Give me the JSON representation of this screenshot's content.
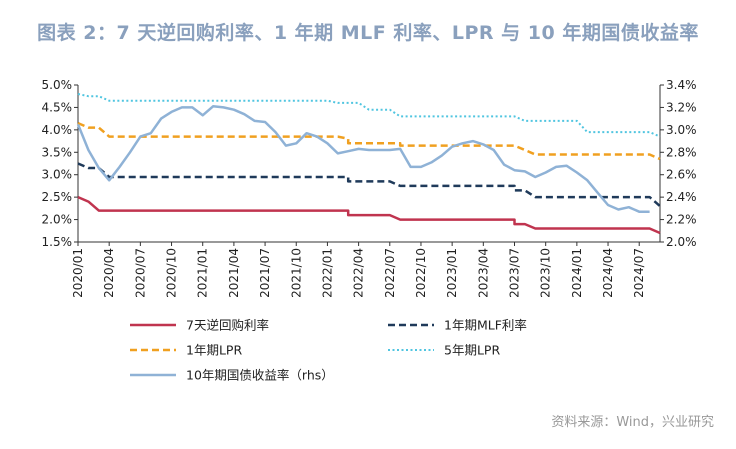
{
  "title": "图表 2：7 天逆回购利率、1 年期 MLF 利率、LPR 与 10 年期国债收益率",
  "source": "资料来源：Wind，兴业研究",
  "chart_data": {
    "type": "line",
    "x_tick_labels": [
      "2020/01",
      "2020/04",
      "2020/07",
      "2020/10",
      "2021/01",
      "2021/04",
      "2021/07",
      "2021/10",
      "2022/01",
      "2022/04",
      "2022/07",
      "2022/10",
      "2023/01",
      "2023/04",
      "2023/07",
      "2023/10",
      "2024/01",
      "2024/04",
      "2024/07"
    ],
    "x_range": [
      0,
      56
    ],
    "y_left": {
      "min": 1.5,
      "max": 5.0,
      "step": 0.5,
      "tick_labels": [
        "1.5%",
        "2.0%",
        "2.5%",
        "3.0%",
        "3.5%",
        "4.0%",
        "4.5%",
        "5.0%"
      ]
    },
    "y_right": {
      "min": 2.0,
      "max": 3.4,
      "step": 0.2,
      "tick_labels": [
        "2.0%",
        "2.2%",
        "2.4%",
        "2.6%",
        "2.8%",
        "3.0%",
        "3.2%",
        "3.4%"
      ]
    },
    "series": [
      {
        "name": "7天逆回购利率",
        "axis": "left",
        "color": "#c0344f",
        "style": "solid",
        "points": [
          [
            0,
            2.5
          ],
          [
            1,
            2.4
          ],
          [
            2,
            2.2
          ],
          [
            26,
            2.2
          ],
          [
            26,
            2.1
          ],
          [
            30,
            2.1
          ],
          [
            31,
            2.0
          ],
          [
            42,
            2.0
          ],
          [
            42,
            1.9
          ],
          [
            43,
            1.9
          ],
          [
            44,
            1.8
          ],
          [
            55,
            1.8
          ],
          [
            56,
            1.7
          ]
        ]
      },
      {
        "name": "1年期MLF利率",
        "axis": "left",
        "color": "#1f3a5a",
        "style": "dashed",
        "points": [
          [
            0,
            3.25
          ],
          [
            1,
            3.15
          ],
          [
            2,
            3.15
          ],
          [
            3,
            2.95
          ],
          [
            26,
            2.95
          ],
          [
            26,
            2.85
          ],
          [
            30,
            2.85
          ],
          [
            31,
            2.75
          ],
          [
            42,
            2.75
          ],
          [
            42,
            2.65
          ],
          [
            43,
            2.65
          ],
          [
            44,
            2.5
          ],
          [
            55,
            2.5
          ],
          [
            56,
            2.3
          ]
        ]
      },
      {
        "name": "1年期LPR",
        "axis": "left",
        "color": "#f0a020",
        "style": "dashed",
        "points": [
          [
            0,
            4.15
          ],
          [
            1,
            4.05
          ],
          [
            2,
            4.05
          ],
          [
            3,
            3.85
          ],
          [
            24,
            3.85
          ],
          [
            24,
            3.85
          ],
          [
            25,
            3.85
          ],
          [
            26,
            3.8
          ],
          [
            26,
            3.7
          ],
          [
            31,
            3.7
          ],
          [
            31,
            3.65
          ],
          [
            42,
            3.65
          ],
          [
            43,
            3.55
          ],
          [
            44,
            3.45
          ],
          [
            55,
            3.45
          ],
          [
            56,
            3.35
          ]
        ]
      },
      {
        "name": "5年期LPR",
        "axis": "left",
        "color": "#50c5e0",
        "style": "dotted",
        "points": [
          [
            0,
            4.8
          ],
          [
            1,
            4.75
          ],
          [
            2,
            4.75
          ],
          [
            3,
            4.65
          ],
          [
            24,
            4.65
          ],
          [
            25,
            4.6
          ],
          [
            27,
            4.6
          ],
          [
            28,
            4.45
          ],
          [
            30,
            4.45
          ],
          [
            31,
            4.3
          ],
          [
            42,
            4.3
          ],
          [
            43,
            4.2
          ],
          [
            48,
            4.2
          ],
          [
            49,
            3.95
          ],
          [
            55,
            3.95
          ],
          [
            56,
            3.85
          ]
        ]
      },
      {
        "name": "10年期国债收益率（rhs）",
        "axis": "right",
        "color": "#8fb2d6",
        "style": "solid",
        "points": [
          [
            0,
            3.05
          ],
          [
            1,
            2.82
          ],
          [
            2,
            2.66
          ],
          [
            3,
            2.55
          ],
          [
            4,
            2.67
          ],
          [
            5,
            2.8
          ],
          [
            6,
            2.94
          ],
          [
            7,
            2.97
          ],
          [
            8,
            3.1
          ],
          [
            9,
            3.16
          ],
          [
            10,
            3.2
          ],
          [
            11,
            3.2
          ],
          [
            12,
            3.13
          ],
          [
            13,
            3.21
          ],
          [
            14,
            3.2
          ],
          [
            15,
            3.18
          ],
          [
            16,
            3.14
          ],
          [
            17,
            3.08
          ],
          [
            18,
            3.07
          ],
          [
            19,
            2.98
          ],
          [
            20,
            2.86
          ],
          [
            21,
            2.88
          ],
          [
            22,
            2.97
          ],
          [
            23,
            2.94
          ],
          [
            24,
            2.88
          ],
          [
            25,
            2.79
          ],
          [
            26,
            2.81
          ],
          [
            27,
            2.83
          ],
          [
            28,
            2.82
          ],
          [
            29,
            2.82
          ],
          [
            30,
            2.82
          ],
          [
            31,
            2.83
          ],
          [
            32,
            2.67
          ],
          [
            33,
            2.67
          ],
          [
            34,
            2.71
          ],
          [
            35,
            2.77
          ],
          [
            36,
            2.85
          ],
          [
            37,
            2.88
          ],
          [
            38,
            2.9
          ],
          [
            39,
            2.87
          ],
          [
            40,
            2.82
          ],
          [
            41,
            2.69
          ],
          [
            42,
            2.64
          ],
          [
            43,
            2.63
          ],
          [
            44,
            2.58
          ],
          [
            45,
            2.62
          ],
          [
            46,
            2.67
          ],
          [
            47,
            2.68
          ],
          [
            48,
            2.62
          ],
          [
            49,
            2.55
          ],
          [
            50,
            2.44
          ],
          [
            51,
            2.33
          ],
          [
            52,
            2.29
          ],
          [
            53,
            2.31
          ],
          [
            54,
            2.27
          ],
          [
            55,
            2.27
          ]
        ]
      }
    ]
  }
}
